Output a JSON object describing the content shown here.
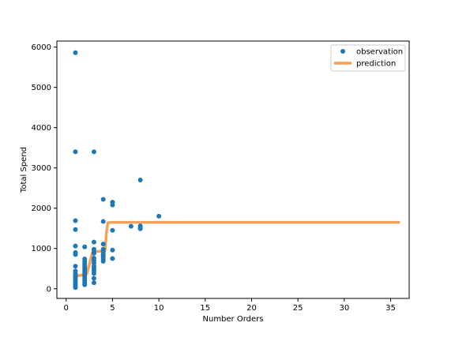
{
  "chart_data": {
    "type": "scatter",
    "title": "",
    "xlabel": "Number Orders",
    "ylabel": "Total Spend",
    "xlim": [
      -1,
      37
    ],
    "ylim": [
      -240,
      6150
    ],
    "xticks": [
      0,
      5,
      10,
      15,
      20,
      25,
      30,
      35
    ],
    "yticks": [
      0,
      1000,
      2000,
      3000,
      4000,
      5000,
      6000
    ],
    "grid": false,
    "legend_position": "upper right",
    "series": [
      {
        "name": "observation",
        "kind": "scatter",
        "color": "#1f77b4",
        "points": [
          [
            1,
            5860
          ],
          [
            1,
            3400
          ],
          [
            1,
            1690
          ],
          [
            1,
            1470
          ],
          [
            1,
            1060
          ],
          [
            1,
            900
          ],
          [
            1,
            850
          ],
          [
            1,
            560
          ],
          [
            1,
            440
          ],
          [
            1,
            380
          ],
          [
            1,
            330
          ],
          [
            1,
            290
          ],
          [
            1,
            250
          ],
          [
            1,
            200
          ],
          [
            1,
            150
          ],
          [
            1,
            100
          ],
          [
            1,
            60
          ],
          [
            1,
            30
          ],
          [
            2,
            1040
          ],
          [
            2,
            740
          ],
          [
            2,
            680
          ],
          [
            2,
            620
          ],
          [
            2,
            560
          ],
          [
            2,
            500
          ],
          [
            2,
            450
          ],
          [
            2,
            400
          ],
          [
            2,
            350
          ],
          [
            2,
            300
          ],
          [
            2,
            250
          ],
          [
            2,
            200
          ],
          [
            2,
            150
          ],
          [
            2,
            100
          ],
          [
            3,
            3400
          ],
          [
            3,
            1160
          ],
          [
            3,
            980
          ],
          [
            3,
            920
          ],
          [
            3,
            880
          ],
          [
            3,
            760
          ],
          [
            3,
            700
          ],
          [
            3,
            640
          ],
          [
            3,
            560
          ],
          [
            3,
            500
          ],
          [
            3,
            440
          ],
          [
            3,
            380
          ],
          [
            3,
            260
          ],
          [
            3,
            150
          ],
          [
            4,
            2220
          ],
          [
            4,
            1670
          ],
          [
            4,
            1110
          ],
          [
            4,
            980
          ],
          [
            4,
            920
          ],
          [
            4,
            860
          ],
          [
            4,
            820
          ],
          [
            4,
            780
          ],
          [
            4,
            730
          ],
          [
            4,
            680
          ],
          [
            5,
            2150
          ],
          [
            5,
            2080
          ],
          [
            5,
            1450
          ],
          [
            5,
            960
          ],
          [
            5,
            750
          ],
          [
            7,
            1550
          ],
          [
            8,
            2700
          ],
          [
            8,
            1560
          ],
          [
            8,
            1510
          ],
          [
            8,
            1490
          ],
          [
            10,
            1800
          ]
        ]
      },
      {
        "name": "prediction",
        "kind": "line",
        "color": "#f4a259",
        "points": [
          [
            1,
            320
          ],
          [
            1.5,
            330
          ],
          [
            2,
            350
          ],
          [
            2.2,
            360
          ],
          [
            2.5,
            600
          ],
          [
            2.8,
            880
          ],
          [
            3,
            910
          ],
          [
            3.5,
            930
          ],
          [
            4,
            930
          ],
          [
            4.2,
            950
          ],
          [
            4.35,
            1400
          ],
          [
            4.5,
            1640
          ],
          [
            5,
            1650
          ],
          [
            10,
            1650
          ],
          [
            20,
            1650
          ],
          [
            30,
            1650
          ],
          [
            36,
            1650
          ]
        ]
      }
    ]
  }
}
